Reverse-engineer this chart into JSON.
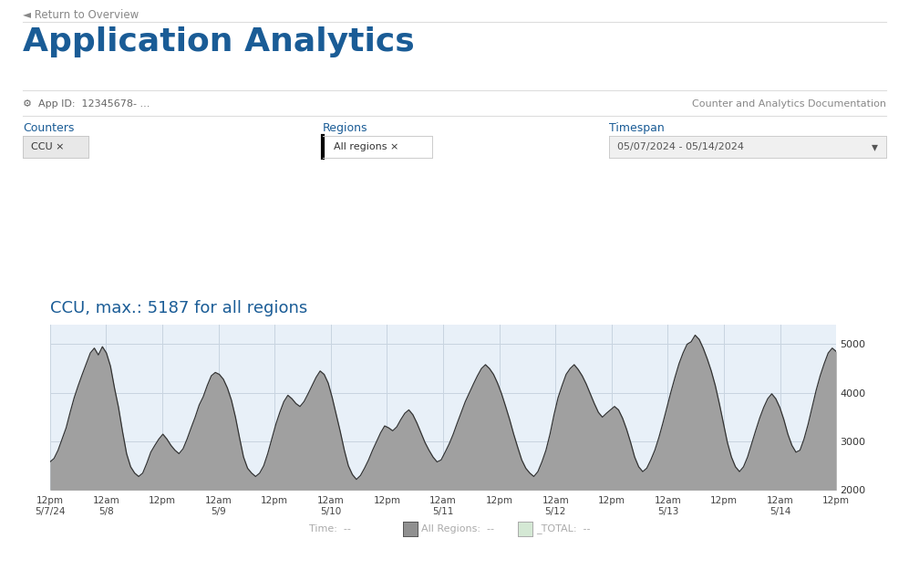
{
  "page_title": "Application Analytics",
  "return_text": "◄ Return to Overview",
  "app_id_label": "App ID:",
  "app_id_value": "12345678- ...",
  "doc_link": "Counter and Analytics Documentation",
  "counters_label": "Counters",
  "regions_label": "Regions",
  "timespan_label": "Timespan",
  "counter_tag": "CCU ×",
  "region_tag": "All regions ×",
  "timespan_value": "05/07/2024 - 05/14/2024",
  "chart_title": "CCU, max.: 5187 for all regions",
  "chart_title_color": "#1a5c96",
  "background_color": "#ffffff",
  "chart_bg_color": "#e8f0f8",
  "fill_color": "#a0a0a0",
  "line_color": "#333333",
  "ylim": [
    2000,
    5400
  ],
  "yticks": [
    2000,
    3000,
    4000,
    5000
  ],
  "xlabel_color": "#444444",
  "grid_color": "#c8d4e0",
  "x_tick_labels": [
    "12pm\n5/7/24",
    "12am\n5/8",
    "12pm",
    "12am\n5/9",
    "12pm",
    "12am\n5/10",
    "12pm",
    "12am\n5/11",
    "12pm",
    "12am\n5/12",
    "12pm",
    "12am\n5/13",
    "12pm",
    "12am\n5/14",
    "12pm"
  ],
  "y_data": [
    2580,
    2650,
    2820,
    3050,
    3280,
    3600,
    3900,
    4150,
    4380,
    4600,
    4820,
    4920,
    4780,
    4950,
    4820,
    4550,
    4100,
    3700,
    3200,
    2750,
    2480,
    2350,
    2280,
    2350,
    2550,
    2780,
    2920,
    3050,
    3150,
    3050,
    2920,
    2820,
    2750,
    2850,
    3050,
    3280,
    3500,
    3750,
    3920,
    4150,
    4350,
    4420,
    4380,
    4280,
    4100,
    3850,
    3500,
    3080,
    2680,
    2450,
    2350,
    2280,
    2350,
    2500,
    2750,
    3050,
    3350,
    3600,
    3820,
    3950,
    3880,
    3780,
    3720,
    3820,
    3980,
    4150,
    4320,
    4450,
    4380,
    4200,
    3900,
    3550,
    3200,
    2820,
    2500,
    2320,
    2220,
    2300,
    2450,
    2620,
    2820,
    3000,
    3180,
    3320,
    3280,
    3220,
    3300,
    3450,
    3580,
    3650,
    3550,
    3380,
    3180,
    2980,
    2820,
    2680,
    2580,
    2620,
    2780,
    2950,
    3150,
    3380,
    3600,
    3820,
    4000,
    4180,
    4350,
    4500,
    4580,
    4500,
    4380,
    4200,
    3980,
    3720,
    3450,
    3150,
    2880,
    2620,
    2450,
    2350,
    2280,
    2380,
    2580,
    2820,
    3150,
    3550,
    3900,
    4150,
    4380,
    4500,
    4580,
    4480,
    4350,
    4180,
    3980,
    3780,
    3600,
    3500,
    3580,
    3650,
    3720,
    3650,
    3480,
    3250,
    2980,
    2680,
    2480,
    2380,
    2450,
    2620,
    2820,
    3080,
    3380,
    3700,
    4020,
    4320,
    4600,
    4820,
    5000,
    5050,
    5187,
    5100,
    4920,
    4700,
    4450,
    4150,
    3780,
    3380,
    2980,
    2680,
    2480,
    2380,
    2480,
    2680,
    2950,
    3220,
    3480,
    3700,
    3880,
    3980,
    3880,
    3700,
    3450,
    3150,
    2920,
    2780,
    2820,
    3050,
    3350,
    3700,
    4050,
    4350,
    4600,
    4820,
    4920,
    4850
  ]
}
